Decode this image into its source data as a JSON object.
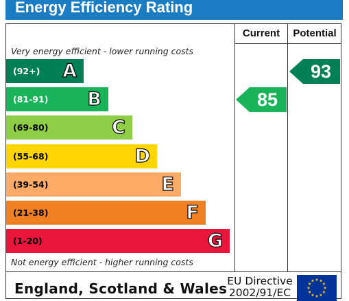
{
  "header": {
    "title": "Energy Efficiency Rating"
  },
  "columns": {
    "current": "Current",
    "potential": "Potential"
  },
  "notes": {
    "top": "Very energy efficient - lower running costs",
    "bottom": "Not energy efficient - higher running costs"
  },
  "chart_data": {
    "type": "bar",
    "title": "Energy Efficiency Rating",
    "categories": [
      "A",
      "B",
      "C",
      "D",
      "E",
      "F",
      "G"
    ],
    "bands": [
      {
        "letter": "A",
        "range": "(92+)",
        "color": "#008054",
        "dark": true
      },
      {
        "letter": "B",
        "range": "(81-91)",
        "color": "#19b459",
        "dark": true
      },
      {
        "letter": "C",
        "range": "(69-80)",
        "color": "#8dce46",
        "dark": false
      },
      {
        "letter": "D",
        "range": "(55-68)",
        "color": "#ffd500",
        "dark": false
      },
      {
        "letter": "E",
        "range": "(39-54)",
        "color": "#fcaa65",
        "dark": false
      },
      {
        "letter": "F",
        "range": "(21-38)",
        "color": "#ef8023",
        "dark": false
      },
      {
        "letter": "G",
        "range": "(1-20)",
        "color": "#e9153b",
        "dark": false
      }
    ],
    "current": {
      "value": "85",
      "band": "B",
      "color": "#19b459"
    },
    "potential": {
      "value": "93",
      "band": "A",
      "color": "#008054"
    }
  },
  "footer": {
    "country": "England, Scotland & Wales",
    "directive_line1": "EU Directive",
    "directive_line2": "2002/91/EC",
    "flag_icon": "eu-flag-icon"
  }
}
